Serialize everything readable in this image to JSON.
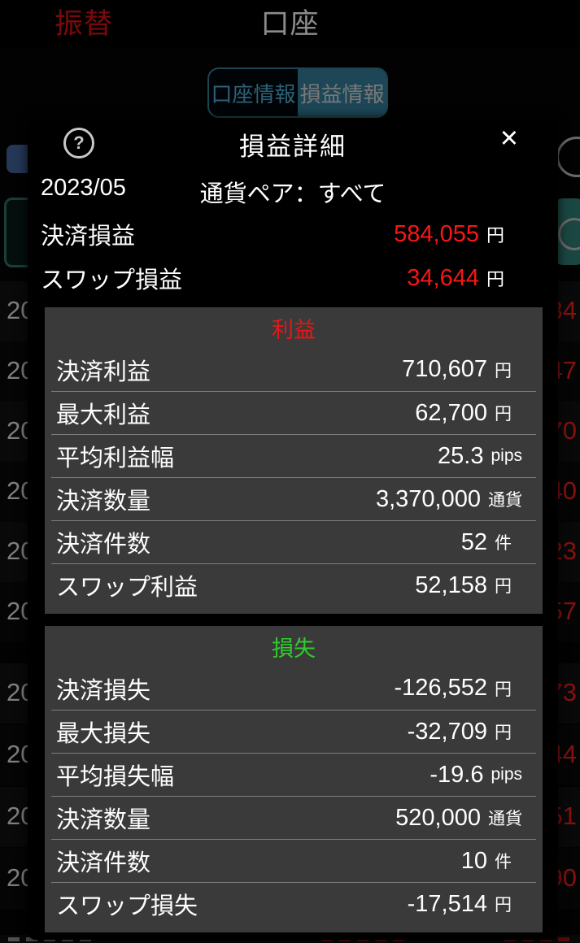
{
  "top_bar": {
    "transfer_label": "振替",
    "account_label": "口座"
  },
  "tabs": {
    "account_info_label": "口座情報",
    "pl_info_label": "損益情報",
    "selected": "損益情報"
  },
  "modal": {
    "title": "損益詳細",
    "help_icon": "?",
    "close_icon": "✕",
    "period": "2023/05",
    "currency_pair": "通貨ペア：すべて",
    "summary": [
      {
        "label": "決済損益",
        "value": "584,055",
        "unit": "円"
      },
      {
        "label": "スワップ損益",
        "value": "34,644",
        "unit": "円"
      }
    ],
    "profit_section": {
      "title": "利益",
      "title_color": "#e51717",
      "rows": [
        {
          "label": "決済利益",
          "value": "710,607",
          "unit": "円"
        },
        {
          "label": "最大利益",
          "value": "62,700",
          "unit": "円"
        },
        {
          "label": "平均利益幅",
          "value": "25.3",
          "unit": "pips"
        },
        {
          "label": "決済数量",
          "value": "3,370,000",
          "unit": "通貨"
        },
        {
          "label": "決済件数",
          "value": "52",
          "unit": "件"
        },
        {
          "label": "スワップ利益",
          "value": "52,158",
          "unit": "円"
        }
      ]
    },
    "loss_section": {
      "title": "損失",
      "title_color": "#2ecc2e",
      "rows": [
        {
          "label": "決済損失",
          "value": "-126,552",
          "unit": "円"
        },
        {
          "label": "最大損失",
          "value": "-32,709",
          "unit": "円"
        },
        {
          "label": "平均損失幅",
          "value": "-19.6",
          "unit": "pips"
        },
        {
          "label": "決済数量",
          "value": "520,000",
          "unit": "通貨"
        },
        {
          "label": "決済件数",
          "value": "10",
          "unit": "件"
        },
        {
          "label": "スワップ損失",
          "value": "-17,514",
          "unit": "円"
        }
      ]
    }
  },
  "background_rows": [
    {
      "date_fragment": "20",
      "value_fragment": "84"
    },
    {
      "date_fragment": "20",
      "value_fragment": "47"
    },
    {
      "date_fragment": "20",
      "value_fragment": "70"
    },
    {
      "date_fragment": "20",
      "value_fragment": "40"
    },
    {
      "date_fragment": "20",
      "value_fragment": "23"
    },
    {
      "date_fragment": "20",
      "value_fragment": "57"
    },
    {
      "date_fragment": "20",
      "value_fragment": "73"
    },
    {
      "date_fragment": "20",
      "value_fragment": "44"
    },
    {
      "date_fragment": "20",
      "value_fragment": "51"
    },
    {
      "date_fragment": "20",
      "value_fragment": "90"
    }
  ],
  "colors": {
    "accent_red": "#fb1515",
    "accent_green": "#2ecc2e",
    "tab_teal": "#337a96",
    "panel_gray": "#3a3a3a",
    "background_red": "#e81c1c"
  }
}
